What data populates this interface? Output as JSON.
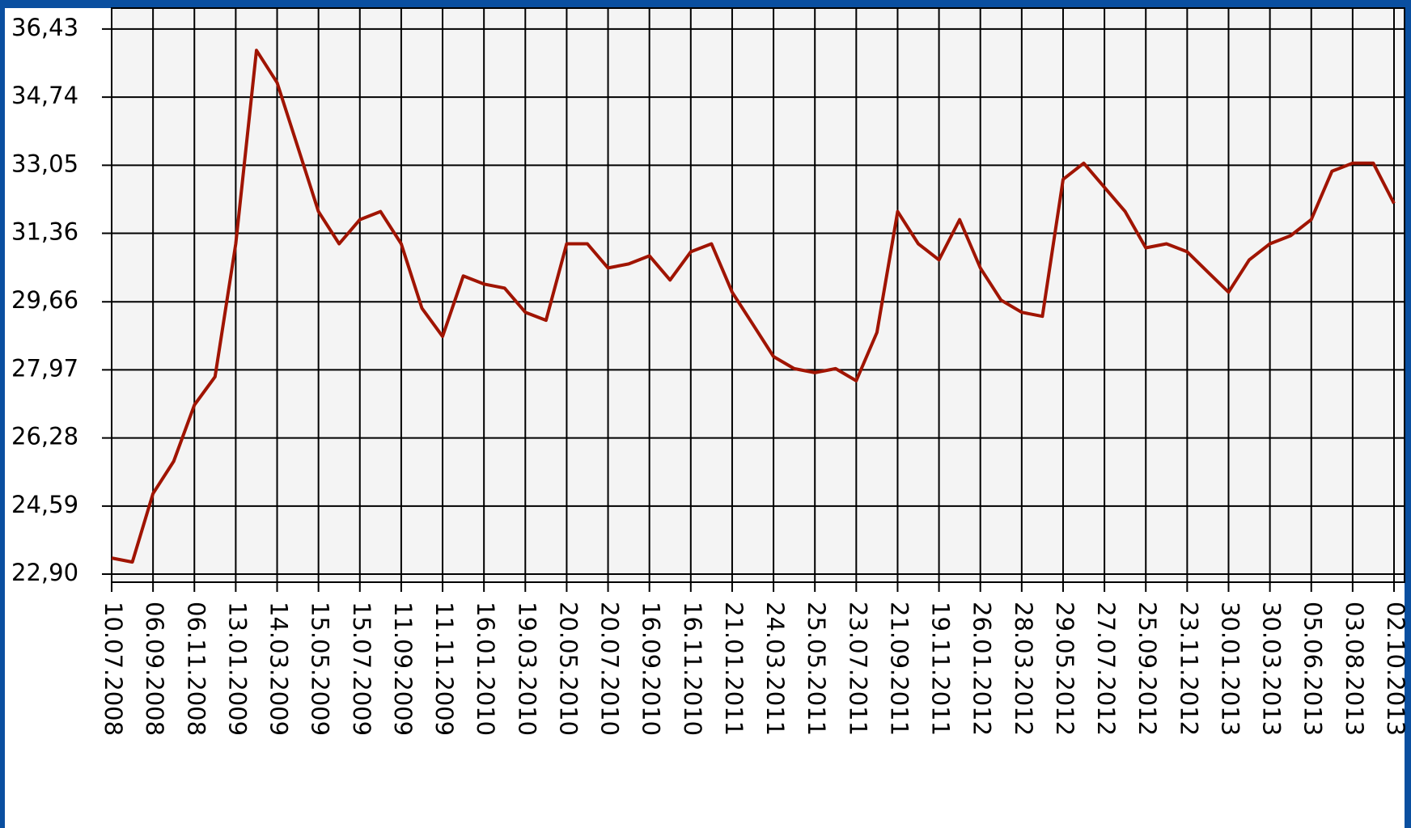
{
  "chart_data": {
    "type": "line",
    "categories": [
      "10.07.2008",
      null,
      "06.09.2008",
      null,
      "06.11.2008",
      null,
      "13.01.2009",
      null,
      "14.03.2009",
      null,
      "15.05.2009",
      null,
      "15.07.2009",
      null,
      "11.09.2009",
      null,
      "11.11.2009",
      null,
      "16.01.2010",
      null,
      "19.03.2010",
      null,
      "20.05.2010",
      null,
      "20.07.2010",
      null,
      "16.09.2010",
      null,
      "16.11.2010",
      null,
      "21.01.2011",
      null,
      "24.03.2011",
      null,
      "25.05.2011",
      null,
      "23.07.2011",
      null,
      "21.09.2011",
      null,
      "19.11.2011",
      null,
      "26.01.2012",
      null,
      "28.03.2012",
      null,
      "29.05.2012",
      null,
      "27.07.2012",
      null,
      "25.09.2012",
      null,
      "23.11.2012",
      null,
      "30.01.2013",
      null,
      "30.03.2013",
      null,
      "05.06.2013",
      null,
      "03.08.2013",
      null,
      "02.10.2013"
    ],
    "series": [
      {
        "color": "#a01400",
        "values": [
          23.3,
          23.2,
          24.9,
          25.7,
          27.1,
          27.8,
          31.1,
          35.9,
          35.1,
          33.5,
          31.9,
          31.1,
          31.7,
          31.9,
          31.1,
          29.5,
          28.8,
          30.3,
          30.1,
          30.0,
          29.4,
          29.2,
          31.1,
          31.1,
          30.5,
          30.6,
          30.8,
          30.2,
          30.9,
          31.1,
          29.9,
          29.1,
          28.3,
          28.0,
          27.9,
          28.0,
          27.7,
          28.9,
          31.9,
          31.1,
          30.7,
          31.7,
          30.5,
          29.7,
          29.4,
          29.3,
          32.7,
          33.1,
          32.5,
          31.9,
          31.0,
          31.1,
          30.9,
          30.4,
          29.9,
          30.7,
          31.1,
          31.3,
          31.7,
          32.9,
          33.1,
          33.1,
          32.1
        ]
      }
    ],
    "ylim": [
      22.7,
      36.95
    ],
    "yticks": [
      {
        "value": 22.9,
        "label": "22,90"
      },
      {
        "value": 24.59,
        "label": "24,59"
      },
      {
        "value": 26.28,
        "label": "26,28"
      },
      {
        "value": 27.97,
        "label": "27,97"
      },
      {
        "value": 29.66,
        "label": "29,66"
      },
      {
        "value": 31.36,
        "label": "31,36"
      },
      {
        "value": 33.05,
        "label": "33,05"
      },
      {
        "value": 34.74,
        "label": "34,74"
      },
      {
        "value": 36.43,
        "label": "36,43"
      }
    ],
    "grid": true
  }
}
